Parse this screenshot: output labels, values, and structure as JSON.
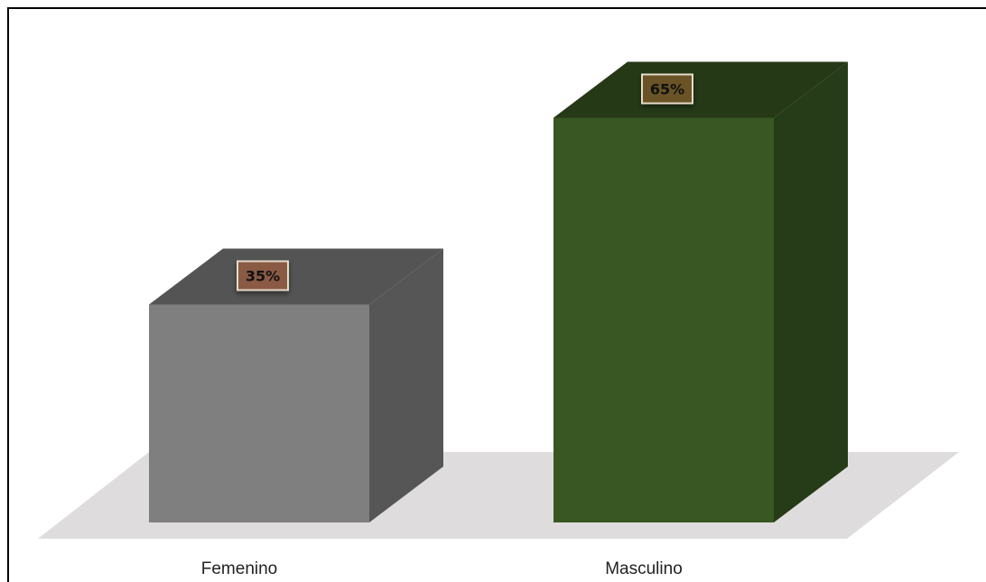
{
  "chart_data": {
    "type": "bar",
    "style": "3d-column",
    "categories": [
      "Femenino",
      "Masculino"
    ],
    "values": [
      35,
      65
    ],
    "value_labels": [
      "35%",
      "65%"
    ],
    "unit": "%",
    "ylim": [
      0,
      70
    ],
    "grid": false,
    "legend": "none",
    "colors": {
      "bars": [
        "#7f7f7f",
        "#385723"
      ],
      "label_boxes": [
        "#8a5a44",
        "#6b5327"
      ],
      "floor": "#dedcdc"
    }
  }
}
